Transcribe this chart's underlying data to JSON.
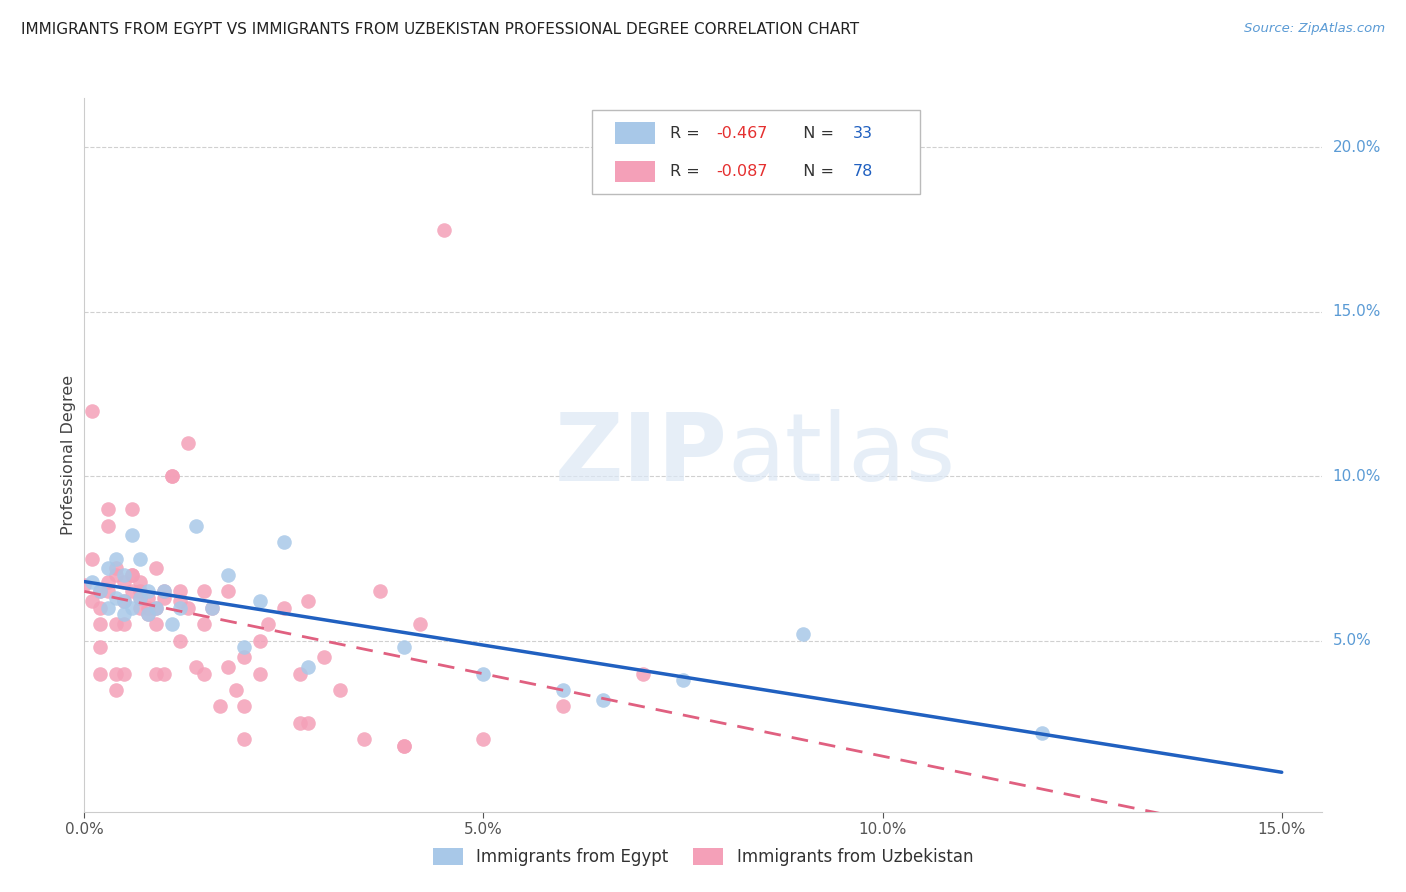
{
  "title": "IMMIGRANTS FROM EGYPT VS IMMIGRANTS FROM UZBEKISTAN PROFESSIONAL DEGREE CORRELATION CHART",
  "source": "Source: ZipAtlas.com",
  "ylabel": "Professional Degree",
  "egypt_R": -0.467,
  "egypt_N": 33,
  "uzbekistan_R": -0.087,
  "uzbekistan_N": 78,
  "egypt_color": "#a8c8e8",
  "uzbekistan_color": "#f4a0b8",
  "egypt_line_color": "#2060c0",
  "uzbekistan_line_color": "#e06080",
  "watermark_zip": "ZIP",
  "watermark_atlas": "atlas",
  "xlim": [
    0.0,
    0.155
  ],
  "ylim": [
    -0.002,
    0.215
  ],
  "xtick_vals": [
    0.0,
    0.05,
    0.1,
    0.15
  ],
  "xtick_labels": [
    "0.0%",
    "5.0%",
    "10.0%",
    "15.0%"
  ],
  "ytick_vals": [
    0.0,
    0.05,
    0.1,
    0.15,
    0.2
  ],
  "ytick_labels": [
    "",
    "5.0%",
    "10.0%",
    "15.0%",
    "20.0%"
  ],
  "background_color": "#ffffff",
  "grid_color": "#d0d0d0",
  "egypt_points_x": [
    0.001,
    0.002,
    0.003,
    0.003,
    0.004,
    0.004,
    0.005,
    0.005,
    0.005,
    0.006,
    0.006,
    0.007,
    0.007,
    0.008,
    0.008,
    0.009,
    0.01,
    0.011,
    0.012,
    0.014,
    0.016,
    0.018,
    0.02,
    0.022,
    0.025,
    0.028,
    0.04,
    0.05,
    0.06,
    0.065,
    0.075,
    0.09,
    0.12
  ],
  "egypt_points_y": [
    0.068,
    0.065,
    0.072,
    0.06,
    0.075,
    0.063,
    0.07,
    0.062,
    0.058,
    0.082,
    0.06,
    0.075,
    0.063,
    0.065,
    0.058,
    0.06,
    0.065,
    0.055,
    0.06,
    0.085,
    0.06,
    0.07,
    0.048,
    0.062,
    0.08,
    0.042,
    0.048,
    0.04,
    0.035,
    0.032,
    0.038,
    0.052,
    0.022
  ],
  "uzbekistan_points_x": [
    0.0,
    0.001,
    0.001,
    0.001,
    0.002,
    0.002,
    0.002,
    0.002,
    0.002,
    0.003,
    0.003,
    0.003,
    0.003,
    0.004,
    0.004,
    0.004,
    0.004,
    0.004,
    0.005,
    0.005,
    0.005,
    0.005,
    0.006,
    0.006,
    0.006,
    0.006,
    0.007,
    0.007,
    0.007,
    0.007,
    0.008,
    0.008,
    0.008,
    0.009,
    0.009,
    0.009,
    0.009,
    0.01,
    0.01,
    0.01,
    0.011,
    0.011,
    0.012,
    0.012,
    0.012,
    0.013,
    0.013,
    0.014,
    0.015,
    0.015,
    0.015,
    0.016,
    0.017,
    0.018,
    0.018,
    0.019,
    0.02,
    0.02,
    0.02,
    0.022,
    0.022,
    0.023,
    0.025,
    0.027,
    0.027,
    0.028,
    0.028,
    0.03,
    0.032,
    0.035,
    0.037,
    0.04,
    0.04,
    0.042,
    0.045,
    0.05,
    0.06,
    0.07
  ],
  "uzbekistan_points_y": [
    0.067,
    0.12,
    0.075,
    0.062,
    0.065,
    0.06,
    0.055,
    0.048,
    0.04,
    0.068,
    0.065,
    0.085,
    0.09,
    0.07,
    0.072,
    0.04,
    0.035,
    0.055,
    0.068,
    0.062,
    0.055,
    0.04,
    0.07,
    0.07,
    0.09,
    0.065,
    0.065,
    0.063,
    0.068,
    0.06,
    0.063,
    0.058,
    0.06,
    0.072,
    0.06,
    0.055,
    0.04,
    0.065,
    0.063,
    0.04,
    0.1,
    0.1,
    0.062,
    0.065,
    0.05,
    0.11,
    0.06,
    0.042,
    0.065,
    0.055,
    0.04,
    0.06,
    0.03,
    0.065,
    0.042,
    0.035,
    0.03,
    0.045,
    0.02,
    0.05,
    0.04,
    0.055,
    0.06,
    0.04,
    0.025,
    0.062,
    0.025,
    0.045,
    0.035,
    0.02,
    0.065,
    0.018,
    0.018,
    0.055,
    0.175,
    0.02,
    0.03,
    0.04
  ]
}
